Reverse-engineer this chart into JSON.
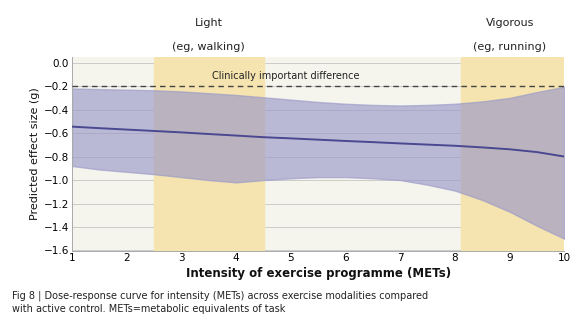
{
  "xlim": [
    1,
    10
  ],
  "ylim": [
    -1.6,
    0.05
  ],
  "yticks": [
    0,
    -0.2,
    -0.4,
    -0.6,
    -0.8,
    -1.0,
    -1.2,
    -1.4,
    -1.6
  ],
  "xticks": [
    1,
    2,
    3,
    4,
    5,
    6,
    7,
    8,
    9,
    10
  ],
  "xlabel": "Intensity of exercise programme (METs)",
  "ylabel": "Predicted effect size (g)",
  "clinically_important_diff": -0.2,
  "clinically_label": "Clinically important difference",
  "light_label_line1": "Light",
  "light_label_line2": "(eg, walking)",
  "light_x_center": 3.5,
  "light_shade_x1": 2.5,
  "light_shade_x2": 4.5,
  "vigorous_label_line1": "Vigorous",
  "vigorous_label_line2": "(eg, running)",
  "vigorous_x_center": 9.0,
  "vigorous_shade_x1": 8.1,
  "vigorous_shade_x2": 10.0,
  "shade_color": "#F5E4B0",
  "ci_band_color": "#9B99C8",
  "ci_band_alpha": 0.65,
  "line_color": "#4A4890",
  "fig_bg_color": "#FFFFFF",
  "plot_bg_color": "#F5F5EE",
  "caption_line1": "Fig 8 | Dose-response curve for intensity (METs) across exercise modalities compared",
  "caption_line2": "with active control. METs=metabolic equivalents of task",
  "mean_x": [
    1.0,
    1.5,
    2.0,
    2.5,
    3.0,
    3.5,
    4.0,
    4.5,
    5.0,
    5.5,
    6.0,
    6.5,
    7.0,
    7.5,
    8.0,
    8.5,
    9.0,
    9.5,
    10.0
  ],
  "mean_y": [
    -0.545,
    -0.558,
    -0.57,
    -0.582,
    -0.594,
    -0.608,
    -0.621,
    -0.635,
    -0.645,
    -0.656,
    -0.667,
    -0.677,
    -0.688,
    -0.698,
    -0.708,
    -0.722,
    -0.738,
    -0.762,
    -0.8
  ],
  "upper_ci": [
    -0.22,
    -0.225,
    -0.23,
    -0.235,
    -0.245,
    -0.26,
    -0.275,
    -0.295,
    -0.315,
    -0.335,
    -0.35,
    -0.36,
    -0.365,
    -0.36,
    -0.35,
    -0.33,
    -0.3,
    -0.25,
    -0.205
  ],
  "lower_ci": [
    -0.88,
    -0.91,
    -0.93,
    -0.95,
    -0.975,
    -1.0,
    -1.02,
    -1.0,
    -0.985,
    -0.975,
    -0.975,
    -0.985,
    -1.0,
    -1.04,
    -1.09,
    -1.17,
    -1.27,
    -1.39,
    -1.5
  ]
}
